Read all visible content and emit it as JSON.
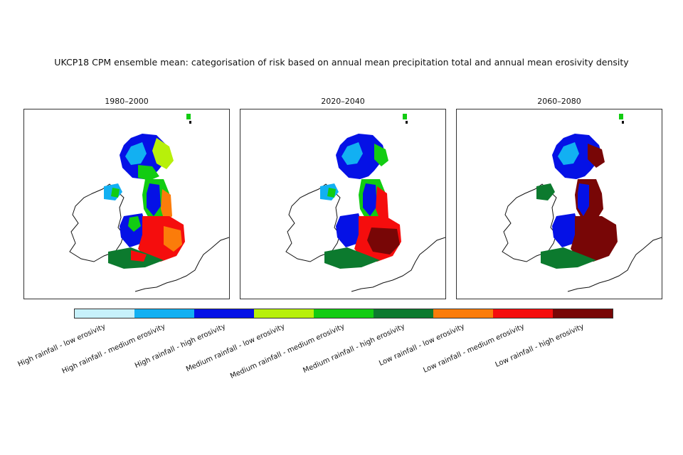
{
  "title": "UKCP18 CPM ensemble mean: categorisation of risk based on annual mean precipitation total and annual mean erosivity density",
  "panels": [
    {
      "label": "1980–2000"
    },
    {
      "label": "2020–2040"
    },
    {
      "label": "2060–2080"
    }
  ],
  "legend": {
    "categories": [
      {
        "label": "High rainfall - low erosivity",
        "color": "#c7f1fb"
      },
      {
        "label": "High rainfall - medium erosivity",
        "color": "#12b0f2"
      },
      {
        "label": "High rainfall - high erosivity",
        "color": "#0511e6"
      },
      {
        "label": "Medium rainfall - low erosivity",
        "color": "#b7f00a"
      },
      {
        "label": "Medium rainfall - medium erosivity",
        "color": "#12cc12"
      },
      {
        "label": "Medium rainfall - high erosivity",
        "color": "#0c7a2e"
      },
      {
        "label": "Low rainfall - low erosivity",
        "color": "#fb7c0a"
      },
      {
        "label": "Low rainfall - medium erosivity",
        "color": "#f50d0d"
      },
      {
        "label": "Low rainfall - high erosivity",
        "color": "#780606"
      }
    ]
  }
}
